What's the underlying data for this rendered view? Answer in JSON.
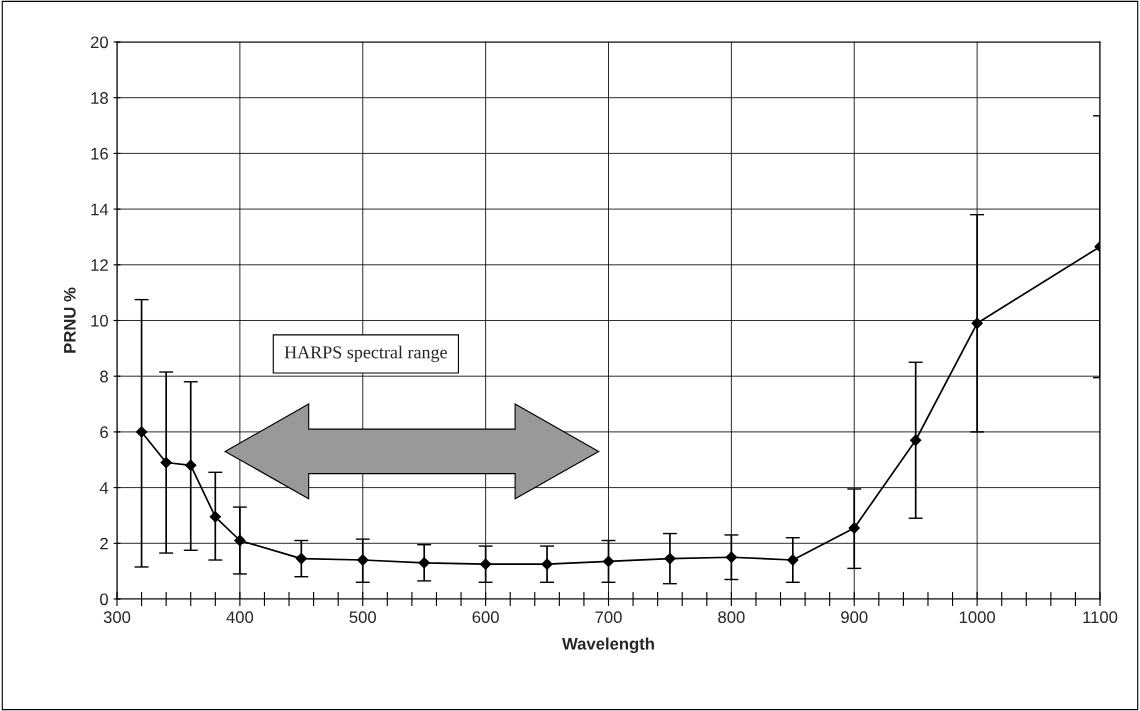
{
  "chart_data": {
    "type": "line",
    "xlabel": "Wavelength",
    "ylabel": "PRNU %",
    "x": [
      320,
      340,
      360,
      380,
      400,
      450,
      500,
      550,
      600,
      650,
      700,
      750,
      800,
      850,
      900,
      950,
      1000,
      1100
    ],
    "values": [
      6.0,
      4.9,
      4.8,
      2.95,
      2.1,
      1.45,
      1.4,
      1.3,
      1.25,
      1.25,
      1.35,
      1.45,
      1.5,
      1.4,
      2.55,
      5.7,
      9.9,
      12.65
    ],
    "errors": [
      [
        1.15,
        10.75
      ],
      [
        1.65,
        8.15
      ],
      [
        1.75,
        7.8
      ],
      [
        1.4,
        4.55
      ],
      [
        0.9,
        3.3
      ],
      [
        0.8,
        2.1
      ],
      [
        0.6,
        2.15
      ],
      [
        0.65,
        1.95
      ],
      [
        0.6,
        1.9
      ],
      [
        0.6,
        1.9
      ],
      [
        0.6,
        2.1
      ],
      [
        0.55,
        2.35
      ],
      [
        0.7,
        2.3
      ],
      [
        0.6,
        2.2
      ],
      [
        1.1,
        3.95
      ],
      [
        2.9,
        8.5
      ],
      [
        6.0,
        13.8
      ],
      [
        7.95,
        17.35
      ]
    ],
    "color": "#000000",
    "marker": "diamond",
    "line_style": "solid",
    "xlim": [
      300,
      1100
    ],
    "ylim": [
      0,
      20
    ],
    "xticks": [
      300,
      {
        "value": 320,
        "label": null
      },
      {
        "value": 340,
        "label": null
      },
      {
        "value": 360,
        "label": null
      },
      {
        "value": 380,
        "label": null
      },
      400,
      {
        "value": 420,
        "label": null
      },
      {
        "value": 440,
        "label": null
      },
      {
        "value": 460,
        "label": null
      },
      {
        "value": 480,
        "label": null
      },
      500,
      {
        "value": 520,
        "label": null
      },
      {
        "value": 540,
        "label": null
      },
      {
        "value": 560,
        "label": null
      },
      {
        "value": 580,
        "label": null
      },
      600,
      {
        "value": 620,
        "label": null
      },
      {
        "value": 640,
        "label": null
      },
      {
        "value": 660,
        "label": null
      },
      {
        "value": 680,
        "label": null
      },
      700,
      {
        "value": 720,
        "label": null
      },
      {
        "value": 740,
        "label": null
      },
      {
        "value": 760,
        "label": null
      },
      {
        "value": 780,
        "label": null
      },
      800,
      {
        "value": 820,
        "label": null
      },
      {
        "value": 840,
        "label": null
      },
      {
        "value": 860,
        "label": null
      },
      {
        "value": 880,
        "label": null
      },
      900,
      {
        "value": 920,
        "label": null
      },
      {
        "value": 940,
        "label": null
      },
      {
        "value": 960,
        "label": null
      },
      {
        "value": 980,
        "label": null
      },
      1000,
      {
        "value": 1020,
        "label": null
      },
      {
        "value": 1040,
        "label": null
      },
      {
        "value": 1060,
        "label": null
      },
      {
        "value": 1080,
        "label": null
      },
      1100
    ],
    "yticks": [
      0,
      2,
      4,
      6,
      8,
      10,
      12,
      14,
      16,
      18,
      20
    ],
    "grid": true,
    "legend": false,
    "annotations": [
      "HARPS spectral range"
    ]
  }
}
